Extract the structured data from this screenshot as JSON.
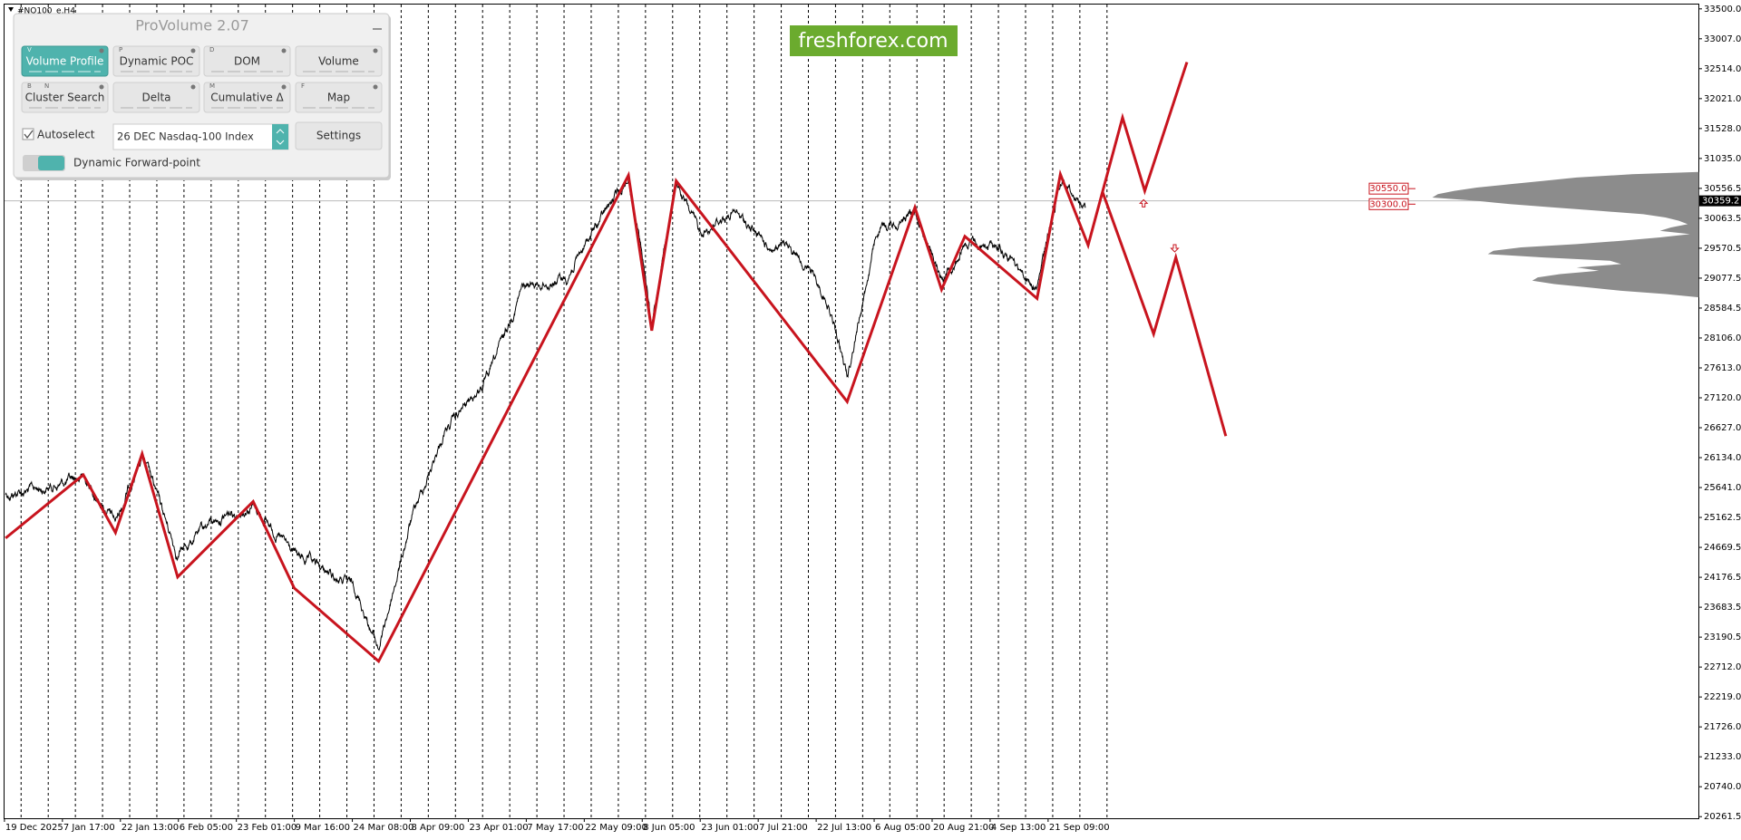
{
  "window": {
    "symbol": "#NQ100_e,H4"
  },
  "panel": {
    "title": "ProVolume 2.07",
    "buttons": [
      {
        "label": "Volume Profile",
        "hotkeys": [
          "V"
        ]
      },
      {
        "label": "Dynamic POC",
        "hotkeys": [
          "P"
        ]
      },
      {
        "label": "DOM",
        "hotkeys": [
          "D"
        ]
      },
      {
        "label": "Volume"
      },
      {
        "label": "Cluster Search",
        "hotkeys": [
          "B",
          "N"
        ]
      },
      {
        "label": "Delta"
      },
      {
        "label": "Cumulative Δ",
        "hotkeys": [
          "M"
        ]
      },
      {
        "label": "Map",
        "hotkeys": [
          "F"
        ]
      }
    ],
    "autoselect": "Autoselect",
    "instrument": "26 DEC Nasdaq-100 Index",
    "settings": "Settings",
    "toggle": "Dynamic Forward-point"
  },
  "logo": "freshforex.com",
  "price_axis": {
    "labels": [
      "33500.0",
      "33007.0",
      "32514.0",
      "32021.0",
      "31528.0",
      "31035.0",
      "30556.5",
      "30063.5",
      "29570.5",
      "29077.5",
      "28584.5",
      "28106.0",
      "27613.0",
      "27120.0",
      "26627.0",
      "26134.0",
      "25641.0",
      "25162.5",
      "24669.5",
      "24176.5",
      "23683.5",
      "23190.5",
      "22712.0",
      "22219.0",
      "21726.0",
      "21233.0",
      "20740.0",
      "20261.5"
    ],
    "current": "30359.2"
  },
  "levels": [
    "30550.0",
    "30300.0"
  ],
  "time_axis": [
    "19 Dec 2025",
    "7 Jan 17:00",
    "22 Jan 13:00",
    "6 Feb 05:00",
    "23 Feb 01:00",
    "9 Mar 16:00",
    "24 Mar 08:00",
    "8 Apr 09:00",
    "23 Apr 01:00",
    "7 May 17:00",
    "22 May 09:00",
    "8 Jun 05:00",
    "23 Jun 01:00",
    "7 Jul 21:00",
    "22 Jul 13:00",
    "6 Aug 05:00",
    "20 Aug 21:00",
    "4 Sep 13:00",
    "21 Sep 09:00"
  ]
}
